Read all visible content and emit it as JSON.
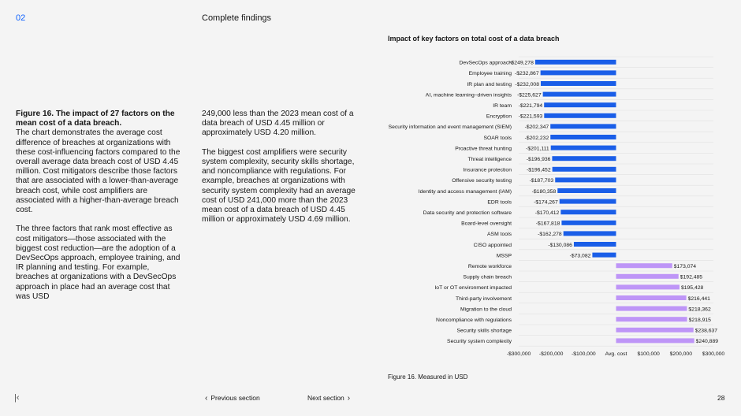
{
  "header": {
    "section_number": "02",
    "section_title": "Complete findings"
  },
  "body_text": {
    "col1_fig_title": "Figure 16. The impact of 27 factors on the mean cost of a data breach.",
    "col1_p1": "The chart demonstrates the average cost difference of breaches at organizations with these cost-influencing factors compared to the overall average data breach cost of USD 4.45 million. Cost mitigators describe those factors that are associated with a lower-than-average breach cost, while cost amplifiers are associated with a higher-than-average breach cost.",
    "col1_p2": "The three factors that rank most effective as cost mitigators—those associated with the biggest cost reduction—are the adoption of a DevSecOps approach, employee training, and IR planning and testing. For example, breaches at organizations with a DevSecOps approach in place had an average cost that was USD",
    "col2_p1": "249,000 less than the 2023 mean cost of a data breach of USD 4.45 million or approximately USD 4.20 million.",
    "col2_p2": "The biggest cost amplifiers were security system complexity, security skills shortage, and noncompliance with regulations. For example, breaches at organizations with security system complexity had an average cost of USD 241,000 more than the 2023 mean cost of a data breach of USD 4.45 million or approximately USD 4.69 million."
  },
  "chart_data": {
    "type": "bar",
    "orientation": "horizontal",
    "title": "Impact of key factors on total cost of a data breach",
    "note": "Figure 16. Measured in USD",
    "xlim": [
      -300000,
      300000
    ],
    "ticks": [
      -300000,
      -200000,
      -100000,
      0,
      100000,
      200000,
      300000
    ],
    "tick_labels": [
      "-$300,000",
      "-$200,000",
      "-$100,000",
      "Avg. cost",
      "$100,000",
      "$200,000",
      "$300,000"
    ],
    "grid": true,
    "colors": {
      "mitigator": "#1a5ee8",
      "amplifier": "#be95f7"
    },
    "categories": [
      "DevSecOps approach",
      "Employee training",
      "IR plan and testing",
      "AI, machine learning–driven insights",
      "IR team",
      "Encryption",
      "Security information and event management (SIEM)",
      "SOAR tools",
      "Proactive threat hunting",
      "Threat intelligence",
      "Insurance protection",
      "Offensive security testing",
      "Identity and access management (IAM)",
      "EDR tools",
      "Data security and protection software",
      "Board-level oversight",
      "ASM tools",
      "CISO appointed",
      "MSSP",
      "Remote workforce",
      "Supply chain breach",
      "IoT or OT environment impacted",
      "Third-party involvement",
      "Migration to the cloud",
      "Noncompliance with regulations",
      "Security skills shortage",
      "Security system complexity"
    ],
    "values": [
      -249278,
      -232867,
      -232008,
      -225627,
      -221794,
      -221593,
      -202347,
      -202232,
      -201111,
      -196936,
      -196452,
      -187703,
      -180358,
      -174267,
      -170412,
      -167818,
      -162278,
      -130086,
      -73082,
      173074,
      192485,
      195428,
      216441,
      218362,
      218915,
      238637,
      240889
    ],
    "value_labels": [
      "-$249,278",
      "-$232,867",
      "-$232,008",
      "-$225,627",
      "-$221,794",
      "-$221,593",
      "-$202,347",
      "-$202,232",
      "-$201,111",
      "-$196,936",
      "-$196,452",
      "-$187,703",
      "-$180,358",
      "-$174,267",
      "-$170,412",
      "-$167,818",
      "-$162,278",
      "-$130,086",
      "-$73,082",
      "$173,074",
      "$192,485",
      "$195,428",
      "$216,441",
      "$218,362",
      "$218,915",
      "$238,637",
      "$240,889"
    ]
  },
  "footer": {
    "first_icon": "first-page-icon",
    "prev_label": "Previous section",
    "next_label": "Next section",
    "page_number": "28"
  }
}
